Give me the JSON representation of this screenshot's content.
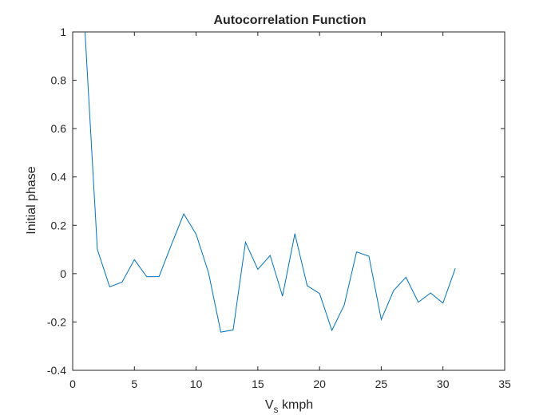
{
  "chart_data": {
    "type": "line",
    "title": "Autocorrelation Function",
    "xlabel_main": "V",
    "xlabel_sub": "s",
    "xlabel_rest": " kmph",
    "ylabel": "Initial phase",
    "xlim": [
      0,
      35
    ],
    "ylim": [
      -0.4,
      1
    ],
    "xticks": [
      0,
      5,
      10,
      15,
      20,
      25,
      30,
      35
    ],
    "yticks": [
      -0.4,
      -0.2,
      0,
      0.2,
      0.4,
      0.6,
      0.8,
      1
    ],
    "xtick_labels": [
      "0",
      "5",
      "10",
      "15",
      "20",
      "25",
      "30",
      "35"
    ],
    "ytick_labels": [
      "-0.4",
      "-0.2",
      "0",
      "0.2",
      "0.4",
      "0.6",
      "0.8",
      "1"
    ],
    "grid": false,
    "line_color": "#0072BD",
    "series": [
      {
        "x": [
          1,
          2,
          3,
          4,
          5,
          6,
          7,
          8,
          9,
          10,
          11,
          12,
          13,
          14,
          15,
          16,
          17,
          18,
          19,
          20,
          21,
          22,
          23,
          24,
          25,
          26,
          27,
          28,
          29,
          30,
          31
        ],
        "y": [
          1.0,
          0.1,
          -0.055,
          -0.035,
          0.058,
          -0.013,
          -0.012,
          0.12,
          0.247,
          0.163,
          0.005,
          -0.242,
          -0.233,
          0.13,
          0.018,
          0.075,
          -0.093,
          0.165,
          -0.05,
          -0.082,
          -0.235,
          -0.13,
          0.09,
          0.072,
          -0.19,
          -0.07,
          -0.015,
          -0.118,
          -0.08,
          -0.122,
          0.022
        ]
      }
    ]
  }
}
